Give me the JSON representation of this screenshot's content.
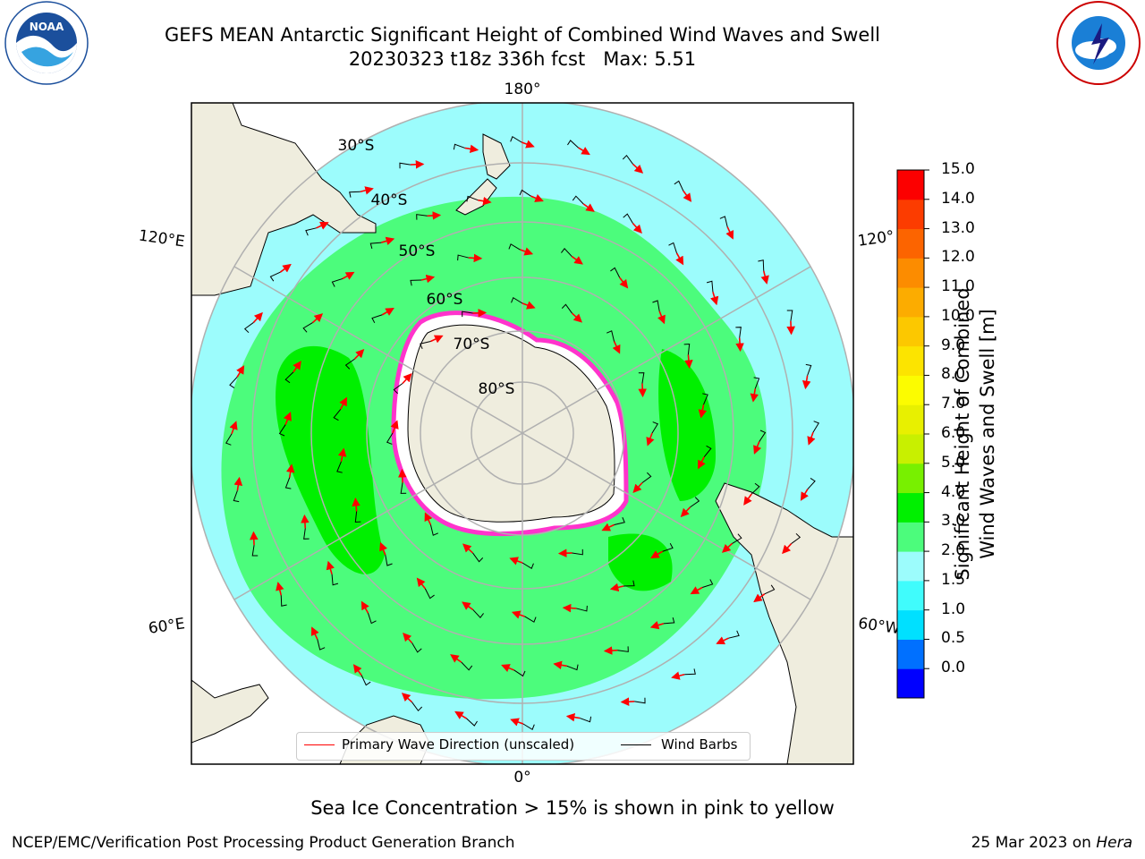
{
  "title": {
    "line1": "GEFS MEAN Antarctic Significant Height of Combined Wind Waves and Swell",
    "line2": "20230323 t18z 336h fcst   Max: 5.51"
  },
  "logos": {
    "left": "noaa-logo",
    "right": "nws-logo"
  },
  "map": {
    "projection": "south-polar-stereographic",
    "lon_labels": {
      "top": "180°",
      "bottom": "0°",
      "left_upper": "120°E",
      "left_lower": "60°E",
      "right_upper": "120°",
      "right_lower": "60°W"
    },
    "lat_labels": [
      "30°S",
      "40°S",
      "50°S",
      "60°S",
      "70°S",
      "80°S"
    ],
    "colors": {
      "land": "#efedde",
      "ocean_low": "#9cfcfc",
      "ocean_mid": "#4cfc7c",
      "ocean_high": "#00f000",
      "ice": "#ff33cc",
      "arrow": "#ff0000",
      "barb": "#000000"
    }
  },
  "legend": {
    "wave_direction": "Primary Wave Direction (unscaled)",
    "wind_barbs": "Wind Barbs"
  },
  "colorbar": {
    "title_line1": "Significant Height of Combined",
    "title_line2": "Wind Waves and Swell [m]",
    "ticks": [
      "15.0",
      "14.0",
      "13.0",
      "12.0",
      "11.0",
      "10.0",
      "9.0",
      "8.0",
      "7.0",
      "6.0",
      "5.0",
      "4.0",
      "3.0",
      "2.0",
      "1.5",
      "1.0",
      "0.5",
      "0.0"
    ],
    "colors": [
      "#0000ff",
      "#0070ff",
      "#00e0ff",
      "#40fcfc",
      "#9cfcfc",
      "#4cfc7c",
      "#00f000",
      "#78f000",
      "#c8f000",
      "#e8f000",
      "#fcfc00",
      "#fce400",
      "#fcc800",
      "#fcac00",
      "#fc8c00",
      "#fc6400",
      "#fc3c00",
      "#fc0000"
    ]
  },
  "note": "Sea Ice Concentration > 15% is shown in pink to yellow",
  "footer": {
    "left": "NCEP/EMC/Verification Post Processing Product Generation Branch",
    "date": "25 Mar 2023 on ",
    "machine": "Hera"
  }
}
